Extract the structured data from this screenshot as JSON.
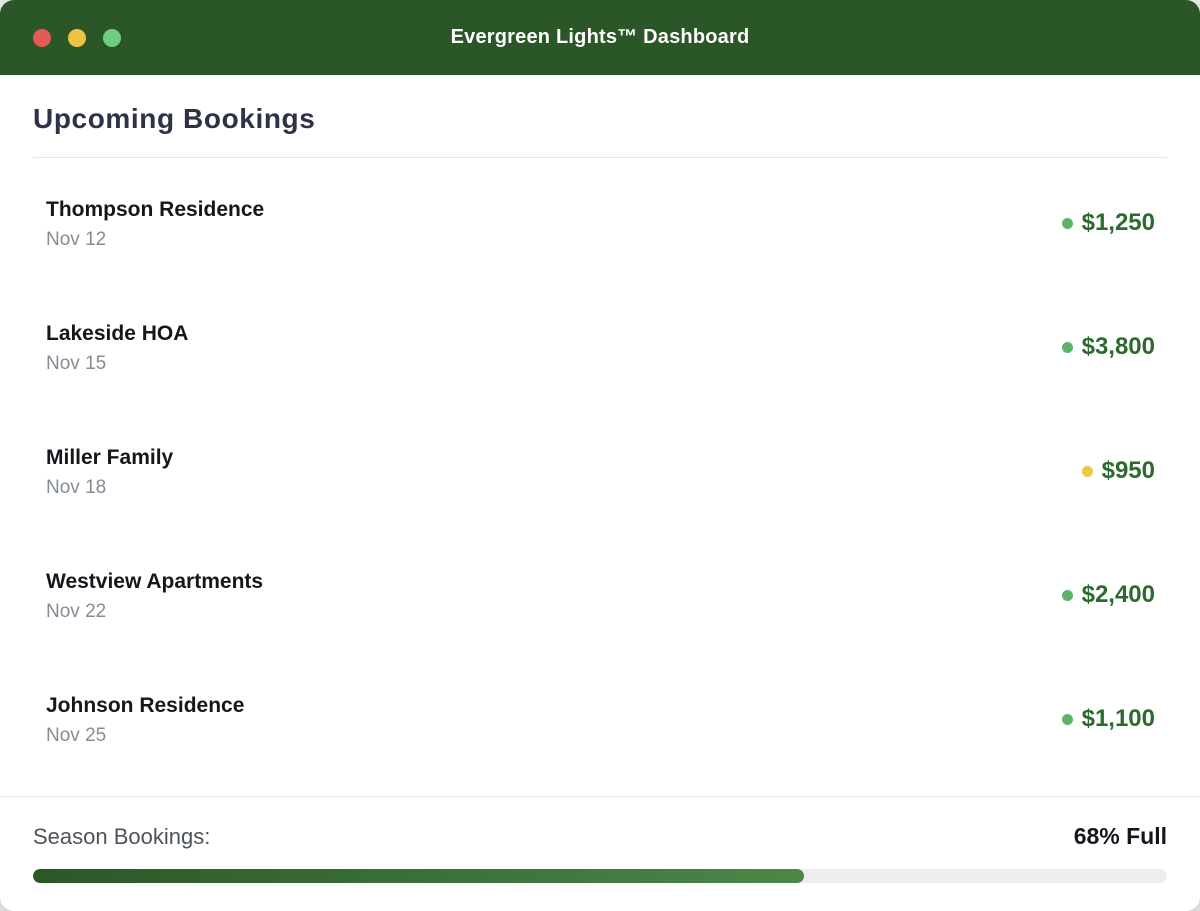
{
  "window": {
    "title": "Evergreen Lights™ Dashboard",
    "titlebar_color": "#2a5628",
    "traffic_lights": {
      "close_color": "#e25c55",
      "minimize_color": "#eec344",
      "zoom_color": "#6fce7e"
    }
  },
  "header": {
    "title": "Upcoming Bookings"
  },
  "bookings": {
    "items": [
      {
        "name": "Thompson Residence",
        "date": "Nov 12",
        "amount": "$1,250",
        "dot_color": "#5cb567"
      },
      {
        "name": "Lakeside HOA",
        "date": "Nov 15",
        "amount": "$3,800",
        "dot_color": "#5cb567"
      },
      {
        "name": "Miller Family",
        "date": "Nov 18",
        "amount": "$950",
        "dot_color": "#edc845"
      },
      {
        "name": "Westview Apartments",
        "date": "Nov 22",
        "amount": "$2,400",
        "dot_color": "#5cb567"
      },
      {
        "name": "Johnson Residence",
        "date": "Nov 25",
        "amount": "$1,100",
        "dot_color": "#5cb567"
      }
    ],
    "amount_color": "#2d6a2f"
  },
  "footer": {
    "label": "Season Bookings:",
    "status": "68% Full",
    "progress_percent": 68,
    "progress_gradient_start": "#2b5727",
    "progress_gradient_end": "#4c8749",
    "track_color": "#ededed"
  }
}
